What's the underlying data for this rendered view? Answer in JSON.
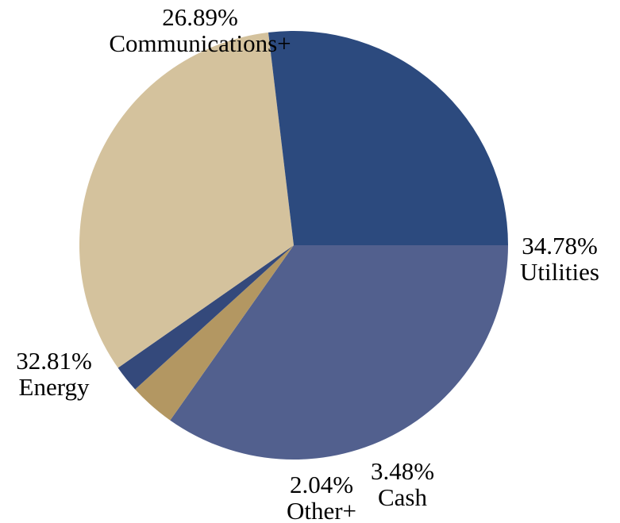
{
  "chart_data": {
    "type": "pie",
    "title": "",
    "colors": {
      "Utilities": "#52608e",
      "Cash": "#b39762",
      "Other+": "#34497b",
      "Energy": "#d4c29d",
      "Communications+": "#2c4a7e"
    },
    "slices": [
      {
        "label": "Utilities",
        "value": 34.78,
        "value_label": "34.78%"
      },
      {
        "label": "Cash",
        "value": 3.48,
        "value_label": "3.48%"
      },
      {
        "label": "Other+",
        "value": 2.04,
        "value_label": "2.04%"
      },
      {
        "label": "Energy",
        "value": 32.81,
        "value_label": "32.81%"
      },
      {
        "label": "Communications+",
        "value": 26.89,
        "value_label": "26.89%"
      }
    ],
    "start_angle_deg": 0,
    "direction": "clockwise",
    "legend": "none"
  }
}
